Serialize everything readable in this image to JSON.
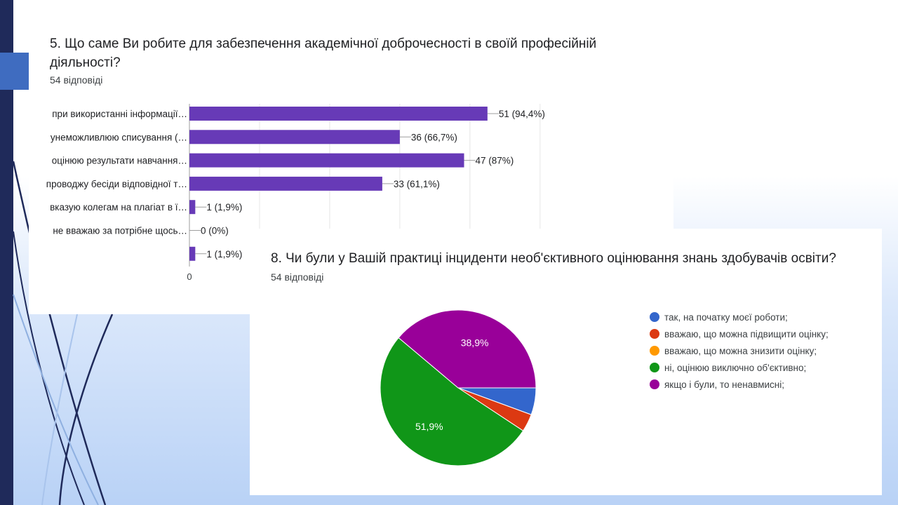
{
  "slide": {
    "accent_dark": "#1f2a5a",
    "accent_block": "#3f6cc0"
  },
  "bar_question": {
    "title": "5. Що саме Ви робите для забезпечення академічної доброчесності в своїй професійній діяльності?",
    "responses": "54 відповіді"
  },
  "pie_question": {
    "title": "8. Чи були у Вашій практиці інциденти необ'єктивного оцінювання знань здобувачів освіти?",
    "responses": "54 відповіді"
  },
  "chart_data": [
    {
      "type": "bar",
      "orientation": "horizontal",
      "categories": [
        "при використанні інформації…",
        "унеможливлюю списування (…",
        "оцінюю результати навчання…",
        "проводжу бесіди відповідної т…",
        "вказую колегам на плагіат в ї…",
        "не вважаю за потрібне щось…",
        ""
      ],
      "values": [
        51,
        36,
        47,
        33,
        1,
        0,
        1
      ],
      "data_labels": [
        "51 (94,4%)",
        "36 (66,7%)",
        "47 (87%)",
        "33 (61,1%)",
        "1 (1,9%)",
        "0 (0%)",
        "1 (1,9%)"
      ],
      "xlim": [
        0,
        60
      ],
      "x_tick_labels": [
        "0"
      ],
      "grid": true,
      "color": "#673ab7"
    },
    {
      "type": "pie",
      "labels": [
        "так, на початку моєї роботи;",
        "вважаю, що можна підвищити оцінку;",
        "вважаю, що можна знизити оцінку;",
        "ні, оцінюю виключно об'єктивно;",
        "якщо і були, то ненавмисні;"
      ],
      "values": [
        5.6,
        3.7,
        0,
        51.9,
        38.9
      ],
      "slice_labels": [
        "",
        "",
        "",
        "51,9%",
        "38,9%"
      ],
      "colors": [
        "#3366cc",
        "#dc3912",
        "#ff9900",
        "#109618",
        "#990099"
      ],
      "legend": "right"
    }
  ]
}
